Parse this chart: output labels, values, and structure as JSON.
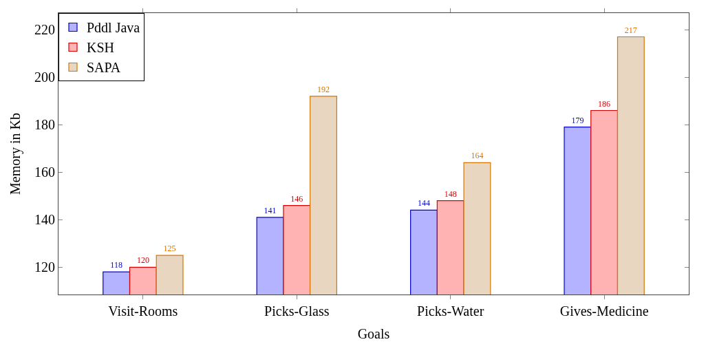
{
  "chart_data": {
    "type": "bar",
    "xlabel": "Goals",
    "ylabel": "Memory in Kb",
    "categories": [
      "Visit-Rooms",
      "Picks-Glass",
      "Picks-Water",
      "Gives-Medicine"
    ],
    "series": [
      {
        "name": "Pddl Java",
        "color": "#b3b3ff",
        "values": [
          118,
          141,
          144,
          179
        ]
      },
      {
        "name": "KSH",
        "color": "#ffb3b3",
        "values": [
          120,
          146,
          148,
          186
        ]
      },
      {
        "name": "SAPA",
        "color": "#e8d6c1",
        "values": [
          125,
          192,
          164,
          217
        ]
      }
    ],
    "ylim": [
      108.5,
      227
    ],
    "yticks": [
      120,
      140,
      160,
      180,
      200,
      220
    ],
    "data_labels": true,
    "legend": "top left"
  }
}
